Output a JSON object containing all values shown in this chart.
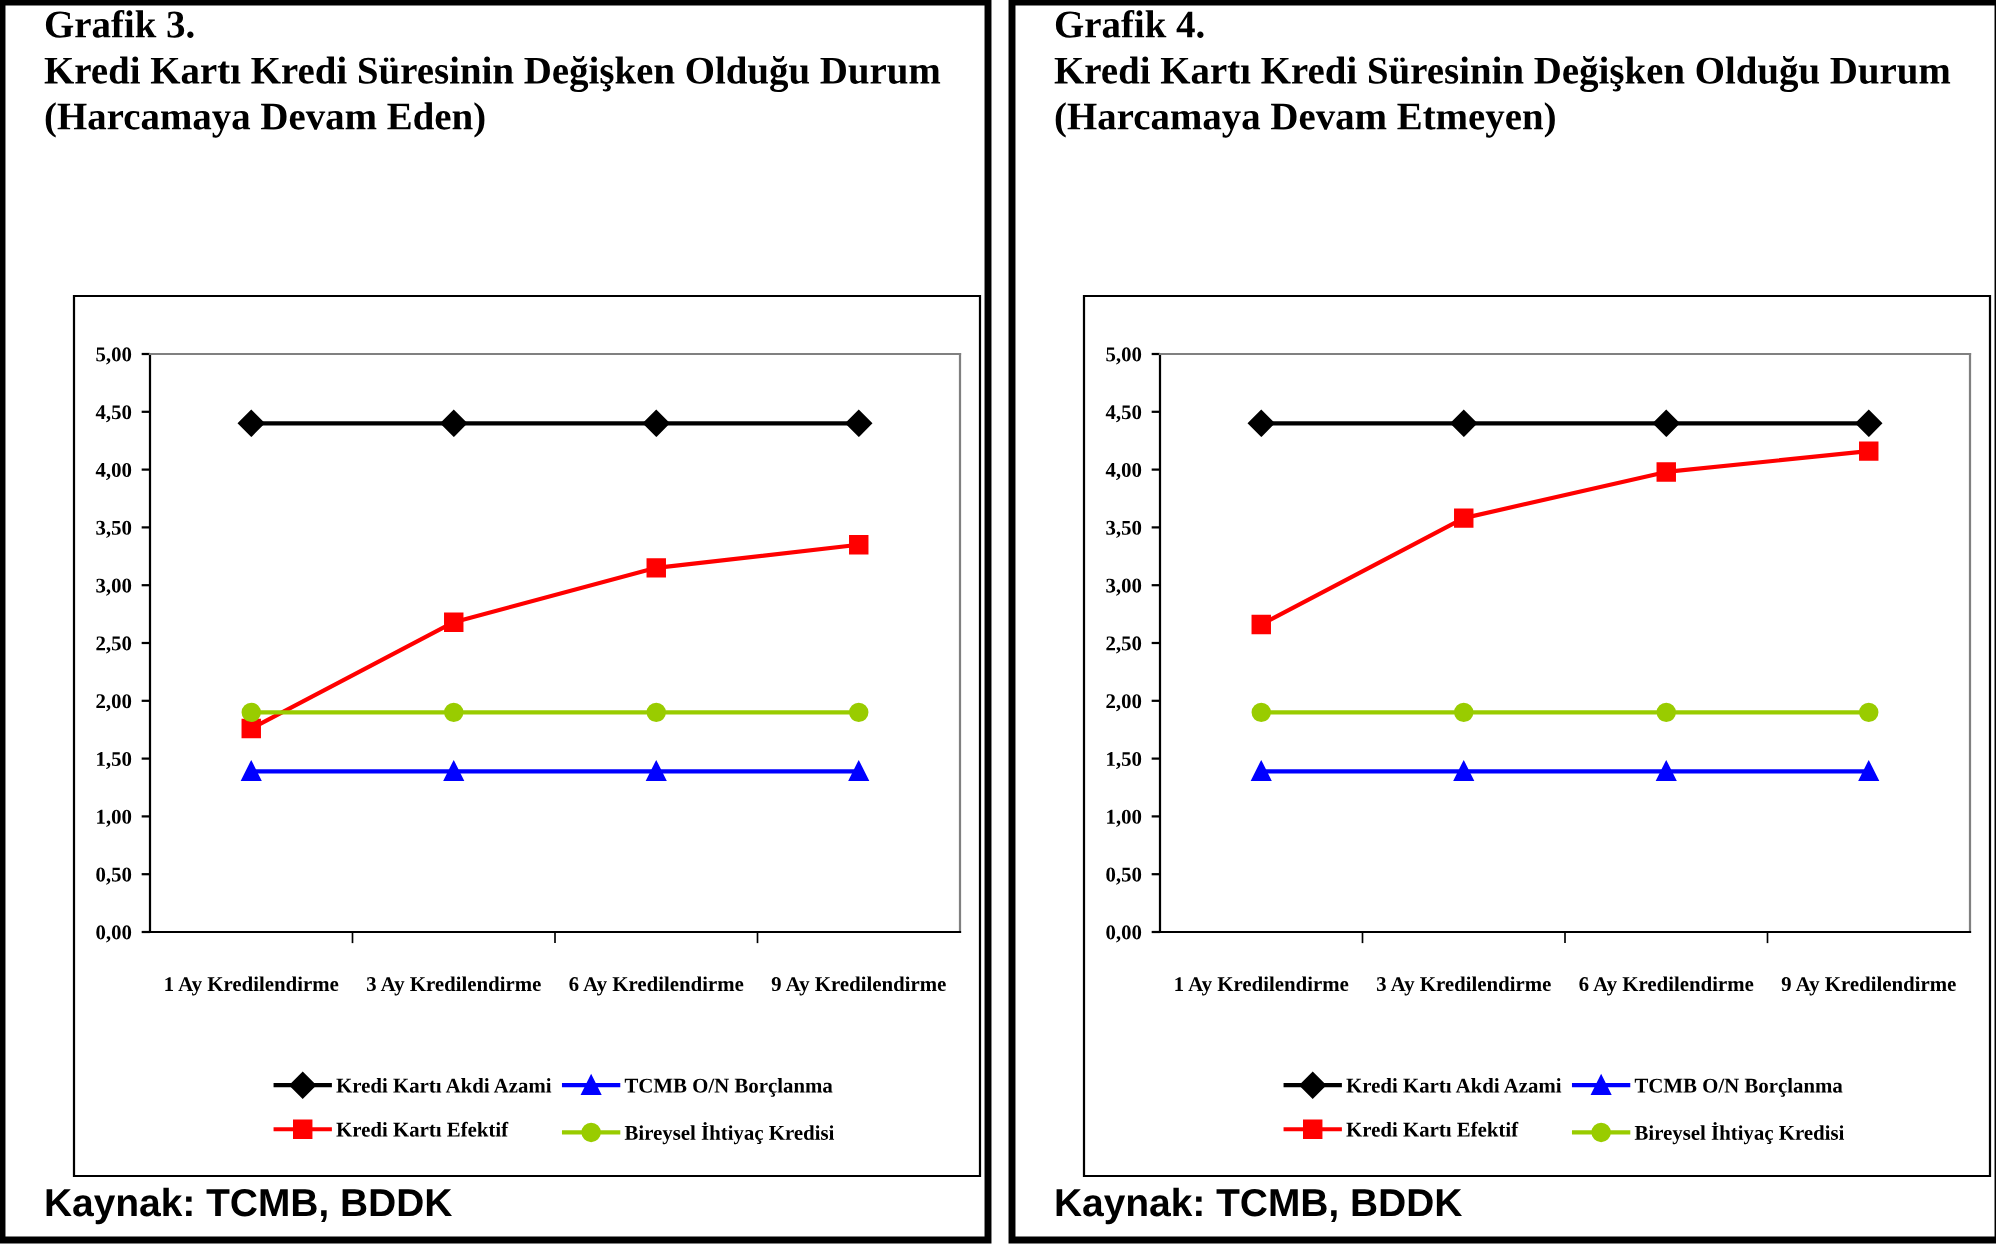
{
  "chart_data": [
    {
      "type": "line",
      "title": "Grafik 3.",
      "subtitle": "Kredi Kartı Kredi Süresinin Değişken Olduğu Durum (Harcamaya Devam Eden)",
      "categories": [
        "1 Ay Kredilendirme",
        "3 Ay Kredilendirme",
        "6 Ay Kredilendirme",
        "9 Ay Kredilendirme"
      ],
      "series": [
        {
          "name": "Kredi Kartı Akdi Azami",
          "color": "#000000",
          "marker": "diamond",
          "values": [
            4.4,
            4.4,
            4.4,
            4.4
          ]
        },
        {
          "name": "Kredi Kartı Efektif",
          "color": "#ff0000",
          "marker": "square",
          "values": [
            1.76,
            2.68,
            3.15,
            3.35
          ]
        },
        {
          "name": "TCMB O/N Borçlanma",
          "color": "#0000ff",
          "marker": "triangle",
          "values": [
            1.39,
            1.39,
            1.39,
            1.39
          ]
        },
        {
          "name": "Bireysel İhtiyaç Kredisi",
          "color": "#99cc00",
          "marker": "circle",
          "values": [
            1.9,
            1.9,
            1.9,
            1.9
          ]
        }
      ],
      "ylim": [
        0,
        5
      ],
      "yticks": [
        {
          "value": 0,
          "label": "0,00"
        },
        {
          "value": 0.5,
          "label": "0,50"
        },
        {
          "value": 1,
          "label": "1,00"
        },
        {
          "value": 1.5,
          "label": "1,50"
        },
        {
          "value": 2,
          "label": "2,00"
        },
        {
          "value": 2.5,
          "label": "2,50"
        },
        {
          "value": 3,
          "label": "3,00"
        },
        {
          "value": 3.5,
          "label": "3,50"
        },
        {
          "value": 4,
          "label": "4,00"
        },
        {
          "value": 4.5,
          "label": "4,50"
        },
        {
          "value": 5,
          "label": "5,00"
        }
      ],
      "legend": "bottom",
      "annotations": [
        "Kaynak: TCMB, BDDK"
      ]
    },
    {
      "type": "line",
      "title": "Grafik 4.",
      "subtitle": "Kredi Kartı Kredi Süresinin Değişken Olduğu Durum (Harcamaya Devam Etmeyen)",
      "categories": [
        "1 Ay Kredilendirme",
        "3 Ay Kredilendirme",
        "6 Ay Kredilendirme",
        "9 Ay Kredilendirme"
      ],
      "series": [
        {
          "name": "Kredi Kartı Akdi Azami",
          "color": "#000000",
          "marker": "diamond",
          "values": [
            4.4,
            4.4,
            4.4,
            4.4
          ]
        },
        {
          "name": "Kredi Kartı Efektif",
          "color": "#ff0000",
          "marker": "square",
          "values": [
            2.66,
            3.58,
            3.98,
            4.16
          ]
        },
        {
          "name": "TCMB O/N Borçlanma",
          "color": "#0000ff",
          "marker": "triangle",
          "values": [
            1.39,
            1.39,
            1.39,
            1.39
          ]
        },
        {
          "name": "Bireysel İhtiyaç Kredisi",
          "color": "#99cc00",
          "marker": "circle",
          "values": [
            1.9,
            1.9,
            1.9,
            1.9
          ]
        }
      ],
      "ylim": [
        0,
        5
      ],
      "yticks": [
        {
          "value": 0,
          "label": "0,00"
        },
        {
          "value": 0.5,
          "label": "0,50"
        },
        {
          "value": 1,
          "label": "1,00"
        },
        {
          "value": 1.5,
          "label": "1,50"
        },
        {
          "value": 2,
          "label": "2,00"
        },
        {
          "value": 2.5,
          "label": "2,50"
        },
        {
          "value": 3,
          "label": "3,00"
        },
        {
          "value": 3.5,
          "label": "3,50"
        },
        {
          "value": 4,
          "label": "4,00"
        },
        {
          "value": 4.5,
          "label": "4,50"
        },
        {
          "value": 5,
          "label": "5,00"
        }
      ],
      "legend": "bottom",
      "annotations": [
        "Kaynak: TCMB, BDDK"
      ]
    }
  ]
}
